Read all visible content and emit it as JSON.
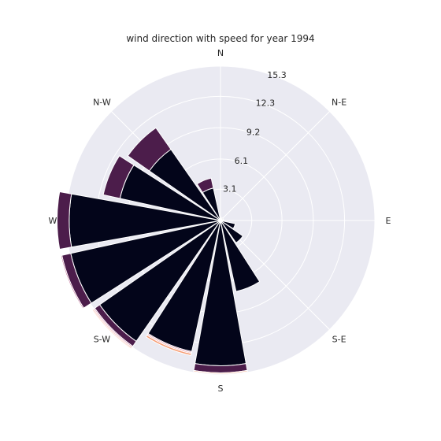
{
  "chart_data": {
    "type": "windrose",
    "title": "wind direction with speed for year 1994",
    "direction_labels": [
      "N",
      "N-E",
      "E",
      "S-E",
      "S",
      "S-W",
      "W",
      "N-W"
    ],
    "radial_ticks": [
      "3.1",
      "6.1",
      "9.2",
      "12.3",
      "15.3"
    ],
    "radial_max": 15.3,
    "sectors": 16,
    "sector_directions_deg": [
      0,
      22.5,
      45,
      67.5,
      90,
      112.5,
      135,
      157.5,
      180,
      202.5,
      225,
      247.5,
      270,
      292.5,
      315,
      337.5
    ],
    "speed_bins": [
      {
        "color": "#03051a"
      },
      {
        "color": "#4c1d4b"
      },
      {
        "color": "#a11a5b"
      },
      {
        "color": "#e83f3f"
      },
      {
        "color": "#f69c73"
      },
      {
        "color": "#faebdd"
      }
    ],
    "cumulative_frequency": [
      [
        0.3,
        0.3,
        0.3,
        0.3,
        0.3,
        0.3
      ],
      [
        0.3,
        0.3,
        0.3,
        0.3,
        0.3,
        0.3
      ],
      [
        0.3,
        0.3,
        0.3,
        0.3,
        0.3,
        0.3
      ],
      [
        0.3,
        0.3,
        0.3,
        0.3,
        0.3,
        0.3
      ],
      [
        0.3,
        0.3,
        0.3,
        0.3,
        0.3,
        0.3
      ],
      [
        1.5,
        1.5,
        1.5,
        1.5,
        1.5,
        1.5
      ],
      [
        2.7,
        2.7,
        2.7,
        2.7,
        2.7,
        2.7
      ],
      [
        7.2,
        7.2,
        7.2,
        7.2,
        7.2,
        7.2
      ],
      [
        14.4,
        15.1,
        15.1,
        15.1,
        15.2,
        15.2
      ],
      [
        13.3,
        13.3,
        13.4,
        13.5,
        13.7,
        13.7
      ],
      [
        14.6,
        15.2,
        15.3,
        15.4,
        15.5,
        15.5
      ],
      [
        15.2,
        16.1,
        16.2,
        16.2,
        16.2,
        16.2
      ],
      [
        15.0,
        16.2,
        16.2,
        16.2,
        16.2,
        16.2
      ],
      [
        10.2,
        11.9,
        11.9,
        11.9,
        11.9,
        11.9
      ],
      [
        8.6,
        11.2,
        11.2,
        11.2,
        11.2,
        11.2
      ],
      [
        3.3,
        4.3,
        4.3,
        4.3,
        4.3,
        4.3
      ]
    ]
  }
}
